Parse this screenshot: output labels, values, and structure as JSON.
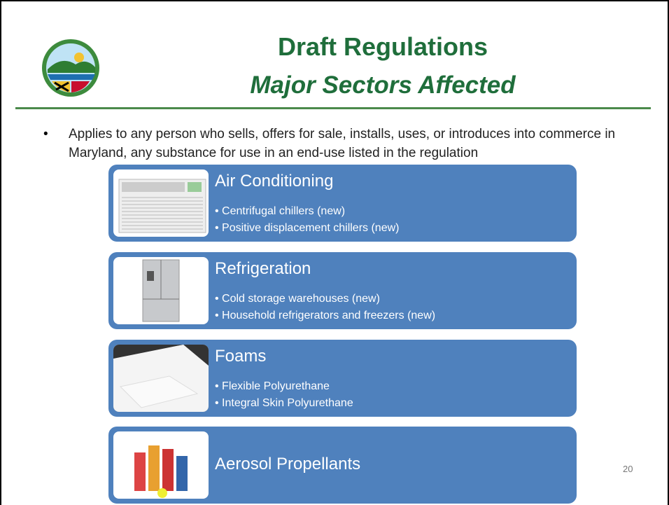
{
  "header": {
    "title": "Draft Regulations",
    "subtitle": "Major Sectors Affected"
  },
  "bullet": "Applies to any person who sells, offers for sale, installs, uses, or introduces into commerce in Maryland, any substance for use in an end-use listed in the regulation",
  "sectors": [
    {
      "title": "Air Conditioning",
      "items": [
        "Centrifugal chillers (new)",
        "Positive displacement chillers (new)"
      ]
    },
    {
      "title": "Refrigeration",
      "items": [
        "Cold storage warehouses (new)",
        "Household refrigerators and freezers (new)"
      ]
    },
    {
      "title": "Foams",
      "items": [
        "Flexible Polyurethane",
        "Integral Skin Polyurethane"
      ]
    },
    {
      "title": "Aerosol Propellants"
    }
  ],
  "page_number": "20"
}
